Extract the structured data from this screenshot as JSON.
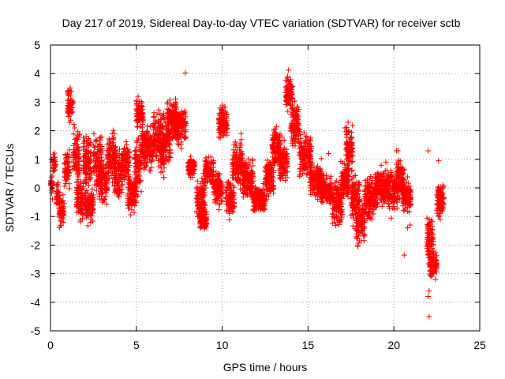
{
  "chart_data": {
    "type": "scatter",
    "title": "Day 217 of 2019, Sidereal Day-to-day VTEC variation (SDTVAR) for receiver sctb",
    "xlabel": "GPS time / hours",
    "ylabel": "SDTVAR / TECUs",
    "xlim": [
      0,
      25
    ],
    "ylim": [
      -5,
      5
    ],
    "xticks": [
      0,
      5,
      10,
      15,
      20,
      25
    ],
    "yticks": [
      -5,
      -4,
      -3,
      -2,
      -1,
      0,
      1,
      2,
      3,
      4,
      5
    ],
    "xtick_labels": [
      "0",
      "5",
      "10",
      "15",
      "20",
      "25"
    ],
    "ytick_labels": [
      "-5",
      "-4",
      "-3",
      "-2",
      "-1",
      "0",
      "1",
      "2",
      "3",
      "4",
      "5"
    ],
    "grid": true,
    "marker": "+",
    "series": [
      {
        "name": "SDTVAR",
        "color": "#ff0000",
        "segments": [
          {
            "x0": 0.0,
            "x1": 0.15,
            "center": 0.1,
            "spread": 0.35
          },
          {
            "x0": 0.15,
            "x1": 0.3,
            "center": 0.9,
            "spread": 0.3
          },
          {
            "x0": 0.35,
            "x1": 0.5,
            "center": -0.3,
            "spread": 0.4
          },
          {
            "x0": 0.5,
            "x1": 0.8,
            "center": -0.8,
            "spread": 0.5
          },
          {
            "x0": 0.8,
            "x1": 1.1,
            "center": 0.6,
            "spread": 0.6
          },
          {
            "x0": 1.0,
            "x1": 1.3,
            "center": 2.9,
            "spread": 0.5
          },
          {
            "x0": 1.3,
            "x1": 1.7,
            "center": 1.2,
            "spread": 0.9
          },
          {
            "x0": 1.5,
            "x1": 1.9,
            "center": -0.4,
            "spread": 0.6
          },
          {
            "x0": 1.9,
            "x1": 2.4,
            "center": 1.0,
            "spread": 0.8
          },
          {
            "x0": 2.0,
            "x1": 2.5,
            "center": -0.6,
            "spread": 0.5
          },
          {
            "x0": 2.5,
            "x1": 3.0,
            "center": 0.9,
            "spread": 0.9
          },
          {
            "x0": 2.8,
            "x1": 3.3,
            "center": 0.2,
            "spread": 0.7
          },
          {
            "x0": 3.3,
            "x1": 3.8,
            "center": 1.1,
            "spread": 0.9
          },
          {
            "x0": 3.7,
            "x1": 4.2,
            "center": 0.5,
            "spread": 0.8
          },
          {
            "x0": 4.2,
            "x1": 4.6,
            "center": 0.9,
            "spread": 0.7
          },
          {
            "x0": 4.5,
            "x1": 5.0,
            "center": -0.2,
            "spread": 0.6
          },
          {
            "x0": 4.9,
            "x1": 5.3,
            "center": 0.8,
            "spread": 0.8
          },
          {
            "x0": 5.0,
            "x1": 5.4,
            "center": 2.6,
            "spread": 0.5
          },
          {
            "x0": 5.3,
            "x1": 6.0,
            "center": 1.4,
            "spread": 0.7
          },
          {
            "x0": 6.0,
            "x1": 6.6,
            "center": 1.8,
            "spread": 0.8
          },
          {
            "x0": 6.4,
            "x1": 7.0,
            "center": 1.4,
            "spread": 0.9
          },
          {
            "x0": 6.8,
            "x1": 7.4,
            "center": 2.4,
            "spread": 0.6
          },
          {
            "x0": 7.2,
            "x1": 7.9,
            "center": 2.2,
            "spread": 0.6
          },
          {
            "x0": 8.0,
            "x1": 8.4,
            "center": 0.7,
            "spread": 0.3
          },
          {
            "x0": 8.5,
            "x1": 9.0,
            "center": -0.4,
            "spread": 0.8
          },
          {
            "x0": 8.7,
            "x1": 9.1,
            "center": -1.1,
            "spread": 0.3
          },
          {
            "x0": 9.0,
            "x1": 9.5,
            "center": 0.6,
            "spread": 0.5
          },
          {
            "x0": 9.5,
            "x1": 10.0,
            "center": 0.0,
            "spread": 0.5
          },
          {
            "x0": 9.8,
            "x1": 10.3,
            "center": 2.3,
            "spread": 0.5
          },
          {
            "x0": 10.2,
            "x1": 10.7,
            "center": -0.4,
            "spread": 0.6
          },
          {
            "x0": 10.6,
            "x1": 11.2,
            "center": 0.8,
            "spread": 0.7
          },
          {
            "x0": 11.2,
            "x1": 11.8,
            "center": 0.3,
            "spread": 0.6
          },
          {
            "x0": 11.8,
            "x1": 12.5,
            "center": -0.4,
            "spread": 0.4
          },
          {
            "x0": 12.5,
            "x1": 13.0,
            "center": 0.4,
            "spread": 0.6
          },
          {
            "x0": 12.9,
            "x1": 13.4,
            "center": 1.4,
            "spread": 0.6
          },
          {
            "x0": 13.3,
            "x1": 13.8,
            "center": 0.9,
            "spread": 0.7
          },
          {
            "x0": 13.7,
            "x1": 14.1,
            "center": 3.3,
            "spread": 0.5
          },
          {
            "x0": 14.0,
            "x1": 14.5,
            "center": 2.2,
            "spread": 0.7
          },
          {
            "x0": 14.5,
            "x1": 15.2,
            "center": 1.1,
            "spread": 0.6
          },
          {
            "x0": 15.1,
            "x1": 15.8,
            "center": 0.3,
            "spread": 0.5
          },
          {
            "x0": 15.7,
            "x1": 16.4,
            "center": -0.1,
            "spread": 0.4
          },
          {
            "x0": 16.4,
            "x1": 17.0,
            "center": -0.5,
            "spread": 0.8
          },
          {
            "x0": 16.9,
            "x1": 17.4,
            "center": 0.3,
            "spread": 0.6
          },
          {
            "x0": 17.2,
            "x1": 17.6,
            "center": 1.5,
            "spread": 0.7
          },
          {
            "x0": 17.5,
            "x1": 18.0,
            "center": -0.3,
            "spread": 0.8
          },
          {
            "x0": 17.8,
            "x1": 18.3,
            "center": -1.2,
            "spread": 0.7
          },
          {
            "x0": 18.3,
            "x1": 19.0,
            "center": -0.3,
            "spread": 0.7
          },
          {
            "x0": 18.9,
            "x1": 19.6,
            "center": 0.0,
            "spread": 0.6
          },
          {
            "x0": 19.6,
            "x1": 20.2,
            "center": -0.1,
            "spread": 0.6
          },
          {
            "x0": 20.1,
            "x1": 20.6,
            "center": 0.3,
            "spread": 0.7
          },
          {
            "x0": 20.5,
            "x1": 21.0,
            "center": -0.3,
            "spread": 0.5
          },
          {
            "x0": 21.9,
            "x1": 22.3,
            "center": -1.8,
            "spread": 0.8
          },
          {
            "x0": 22.1,
            "x1": 22.5,
            "center": -2.7,
            "spread": 0.4
          },
          {
            "x0": 22.5,
            "x1": 22.9,
            "center": -0.4,
            "spread": 0.6
          }
        ],
        "extra_points": [
          [
            7.85,
            4.02
          ],
          [
            13.85,
            4.12
          ],
          [
            13.8,
            3.85
          ],
          [
            1.15,
            3.5
          ],
          [
            5.1,
            3.2
          ],
          [
            22.0,
            1.3
          ],
          [
            22.05,
            -3.6
          ],
          [
            22.0,
            -3.8
          ],
          [
            22.05,
            -4.5
          ],
          [
            20.6,
            -2.35
          ],
          [
            20.8,
            -1.4
          ],
          [
            20.95,
            -1.3
          ],
          [
            0.05,
            1.0
          ],
          [
            0.1,
            0.9
          ],
          [
            9.95,
            2.75
          ],
          [
            11.1,
            1.9
          ],
          [
            12.3,
            -0.7
          ],
          [
            17.15,
            2.1
          ],
          [
            16.2,
            1.2
          ],
          [
            20.15,
            1.3
          ],
          [
            22.2,
            -3.1
          ],
          [
            22.3,
            -2.9
          ],
          [
            22.6,
            0.95
          ],
          [
            17.9,
            -2.05
          ],
          [
            18.1,
            -1.85
          ]
        ]
      }
    ]
  }
}
